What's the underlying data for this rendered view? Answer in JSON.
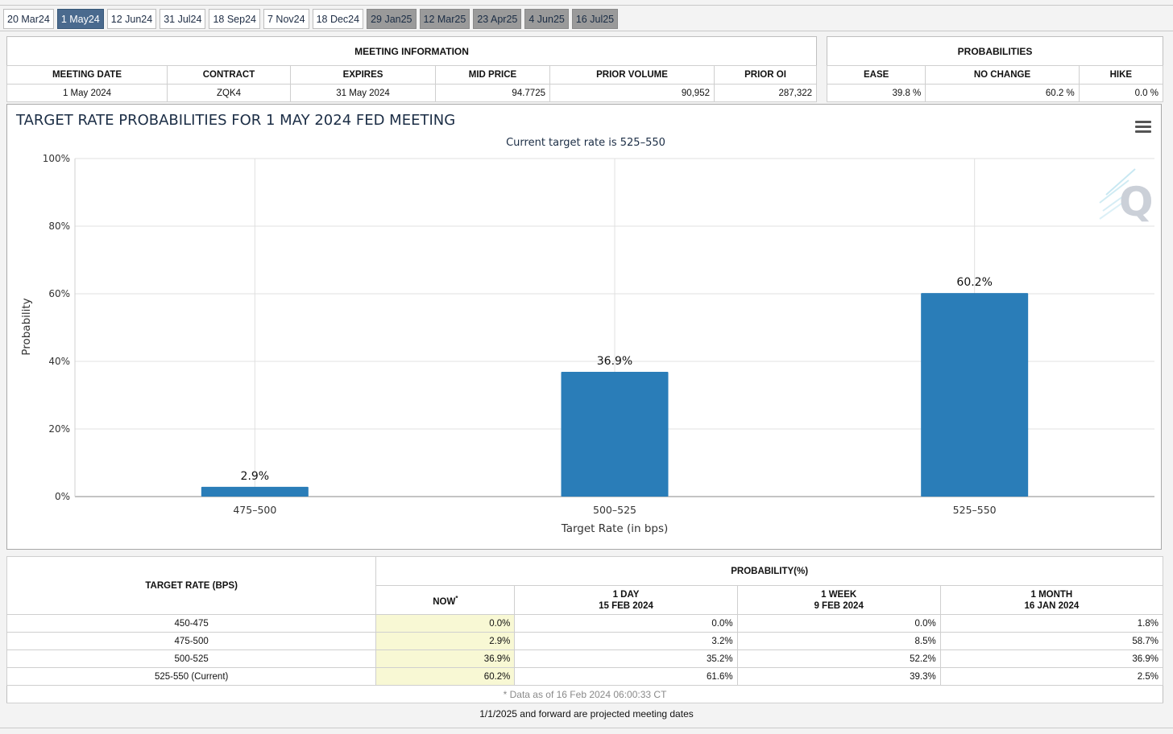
{
  "tabs": [
    {
      "label": "20 Mar24",
      "state": "normal"
    },
    {
      "label": "1 May24",
      "state": "active"
    },
    {
      "label": "12 Jun24",
      "state": "normal"
    },
    {
      "label": "31 Jul24",
      "state": "normal"
    },
    {
      "label": "18 Sep24",
      "state": "normal"
    },
    {
      "label": "7 Nov24",
      "state": "normal"
    },
    {
      "label": "18 Dec24",
      "state": "normal"
    },
    {
      "label": "29 Jan25",
      "state": "projected"
    },
    {
      "label": "12 Mar25",
      "state": "projected"
    },
    {
      "label": "23 Apr25",
      "state": "projected"
    },
    {
      "label": "4 Jun25",
      "state": "projected"
    },
    {
      "label": "16 Jul25",
      "state": "projected"
    }
  ],
  "meeting_info": {
    "title": "MEETING INFORMATION",
    "headers": {
      "meeting_date": "MEETING DATE",
      "contract": "CONTRACT",
      "expires": "EXPIRES",
      "mid_price": "MID PRICE",
      "prior_volume": "PRIOR VOLUME",
      "prior_oi": "PRIOR OI"
    },
    "values": {
      "meeting_date": "1 May 2024",
      "contract": "ZQK4",
      "expires": "31 May 2024",
      "mid_price": "94.7725",
      "prior_volume": "90,952",
      "prior_oi": "287,322"
    }
  },
  "probabilities": {
    "title": "PROBABILITIES",
    "headers": {
      "ease": "EASE",
      "no_change": "NO CHANGE",
      "hike": "HIKE"
    },
    "values": {
      "ease": "39.8 %",
      "no_change": "60.2 %",
      "hike": "0.0 %"
    }
  },
  "chart_data": {
    "type": "bar",
    "title": "TARGET RATE PROBABILITIES FOR 1 MAY 2024 FED MEETING",
    "subtitle": "Current target rate is 525–550",
    "xlabel": "Target Rate (in bps)",
    "ylabel": "Probability",
    "categories": [
      "475–500",
      "500–525",
      "525–550"
    ],
    "values": [
      2.9,
      36.9,
      60.2
    ],
    "data_labels": [
      "2.9%",
      "36.9%",
      "60.2%"
    ],
    "ylim": [
      0,
      100
    ],
    "yticks": [
      0,
      20,
      40,
      60,
      80,
      100
    ],
    "ytick_labels": [
      "0%",
      "20%",
      "40%",
      "60%",
      "80%",
      "100%"
    ],
    "bar_color": "#2a7db8",
    "grid": true,
    "legend": "none"
  },
  "prob_table": {
    "target_rate_header": "TARGET RATE (BPS)",
    "group_header": "PROBABILITY(%)",
    "columns": [
      {
        "line1": "NOW",
        "line2": "",
        "marker": "*"
      },
      {
        "line1": "1 DAY",
        "line2": "15 FEB 2024",
        "marker": ""
      },
      {
        "line1": "1 WEEK",
        "line2": "9 FEB 2024",
        "marker": ""
      },
      {
        "line1": "1 MONTH",
        "line2": "16 JAN 2024",
        "marker": ""
      }
    ],
    "rows": [
      {
        "rate": "450-475",
        "values": [
          "0.0%",
          "0.0%",
          "0.0%",
          "1.8%"
        ]
      },
      {
        "rate": "475-500",
        "values": [
          "2.9%",
          "3.2%",
          "8.5%",
          "58.7%"
        ]
      },
      {
        "rate": "500-525",
        "values": [
          "36.9%",
          "35.2%",
          "52.2%",
          "36.9%"
        ]
      },
      {
        "rate": "525-550 (Current)",
        "values": [
          "60.2%",
          "61.6%",
          "39.3%",
          "2.5%"
        ]
      }
    ],
    "footnote": "* Data as of 16 Feb 2024 06:00:33 CT"
  },
  "note": "1/1/2025 and forward are projected meeting dates",
  "icons": {
    "menu": "hamburger-menu-icon",
    "watermark": "quikstrike-logo"
  }
}
